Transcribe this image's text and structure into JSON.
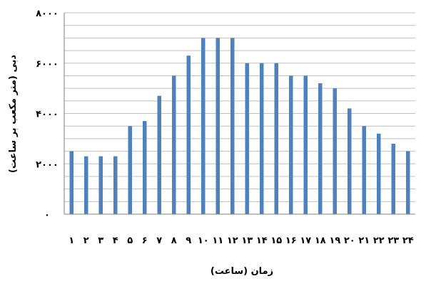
{
  "chart_data": {
    "type": "bar",
    "title": "",
    "xlabel": "زمان (ساعت)",
    "ylabel": "دبی (متر مکعب بر ساعت)",
    "categories": [
      "۱",
      "۲",
      "۳",
      "۴",
      "۵",
      "۶",
      "۷",
      "۸",
      "۹",
      "۱۰",
      "۱۱",
      "۱۲",
      "۱۳",
      "۱۴",
      "۱۵",
      "۱۶",
      "۱۷",
      "۱۸",
      "۱۹",
      "۲۰",
      "۲۱",
      "۲۲",
      "۲۳",
      "۲۴"
    ],
    "values": [
      2500,
      2300,
      2300,
      2300,
      3500,
      3700,
      4700,
      5500,
      6300,
      7000,
      7000,
      7000,
      6000,
      6000,
      6000,
      5500,
      5500,
      5200,
      5000,
      4200,
      3500,
      3200,
      2800,
      2500
    ],
    "ylim": [
      0,
      8000
    ],
    "yticks": [
      0,
      2000,
      4000,
      6000,
      8000
    ],
    "ytick_labels": [
      "۰",
      "۲۰۰۰",
      "۴۰۰۰",
      "۶۰۰۰",
      "۸۰۰۰"
    ],
    "grid": true,
    "bar_color": "#4f81bd",
    "grid_color": "#bfbfbf"
  }
}
